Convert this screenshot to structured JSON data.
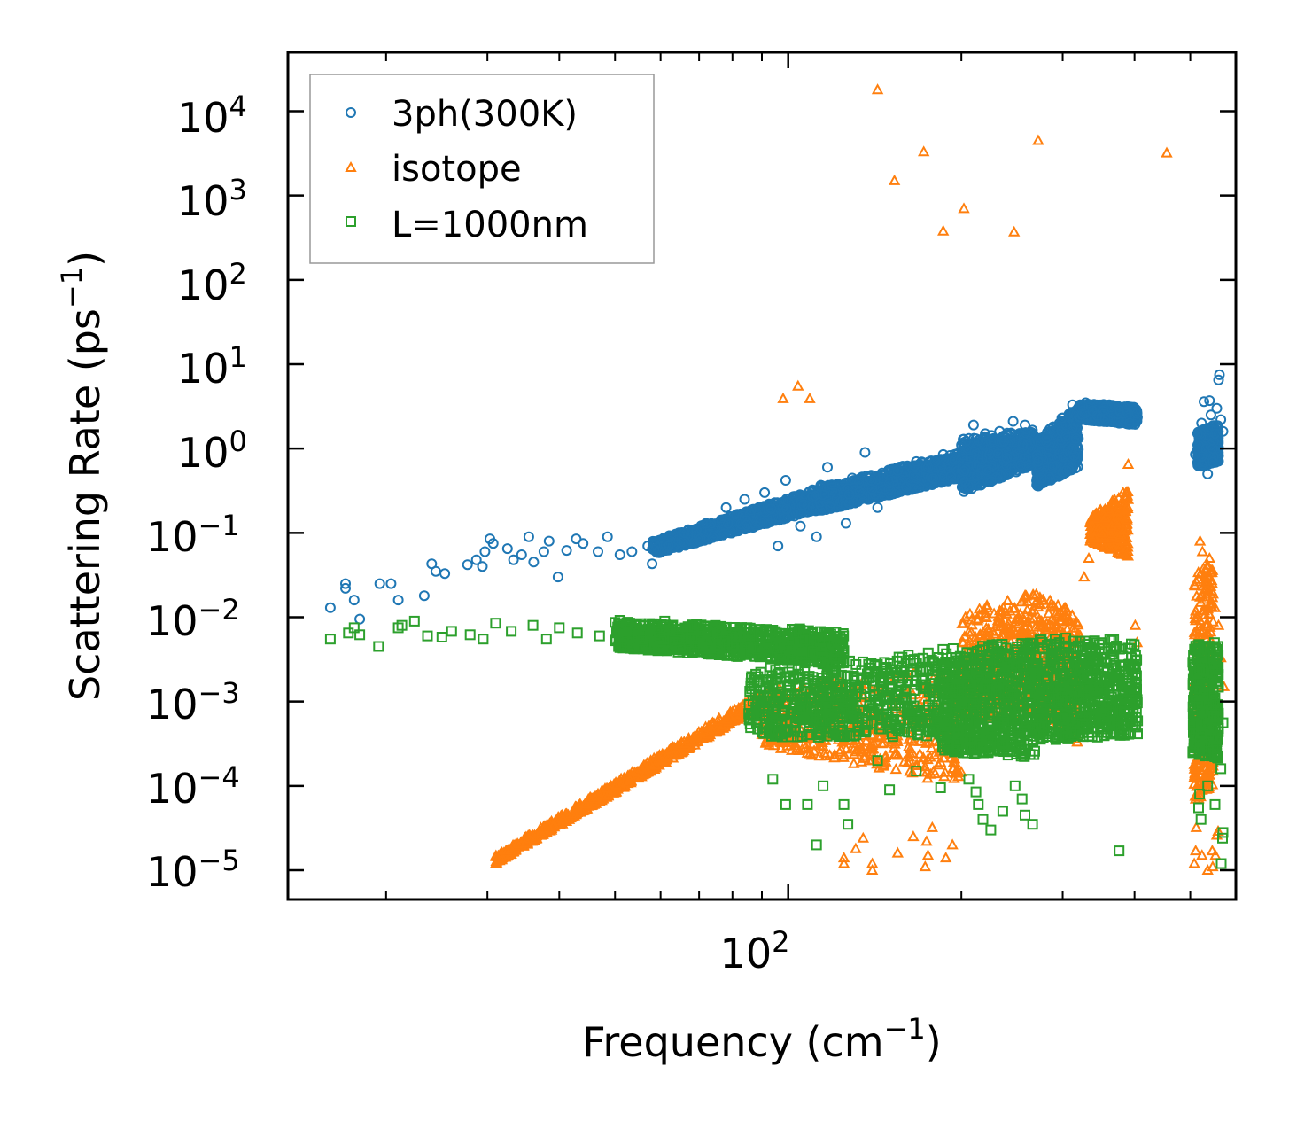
{
  "chart_data": {
    "type": "scatter",
    "xscale": "log",
    "yscale": "log",
    "xlim": [
      13.5,
      600
    ],
    "ylim": [
      4.5e-06,
      50000.0
    ],
    "xlabel": "Frequency (cm",
    "xlabel_sup": "−1",
    "xlabel_end": ")",
    "ylabel": "Scattering Rate (ps",
    "ylabel_sup": "−1",
    "ylabel_end": ")",
    "x_tick_labels": [
      {
        "base": "10",
        "exp": "2",
        "value": 100
      }
    ],
    "y_tick_labels": [
      {
        "base": "10",
        "exp": "−5",
        "value": 1e-05
      },
      {
        "base": "10",
        "exp": "−4",
        "value": 0.0001
      },
      {
        "base": "10",
        "exp": "−3",
        "value": 0.001
      },
      {
        "base": "10",
        "exp": "−2",
        "value": 0.01
      },
      {
        "base": "10",
        "exp": "−1",
        "value": 0.1
      },
      {
        "base": "10",
        "exp": "0",
        "value": 1
      },
      {
        "base": "10",
        "exp": "1",
        "value": 10
      },
      {
        "base": "10",
        "exp": "2",
        "value": 100
      },
      {
        "base": "10",
        "exp": "3",
        "value": 1000
      },
      {
        "base": "10",
        "exp": "4",
        "value": 10000
      }
    ],
    "legend_position": "top-left",
    "series": [
      {
        "name": "3ph(300K)",
        "marker": "circle",
        "color": "#1f77b4",
        "points": [
          [
            16,
            0.013
          ],
          [
            17,
            0.025
          ],
          [
            17,
            0.022
          ],
          [
            17.6,
            0.016
          ],
          [
            18,
            0.0095
          ],
          [
            19.5,
            0.025
          ],
          [
            20.4,
            0.025
          ],
          [
            21,
            0.016
          ],
          [
            23.3,
            0.018
          ],
          [
            24,
            0.043
          ],
          [
            24.4,
            0.035
          ],
          [
            25.3,
            0.033
          ],
          [
            27.7,
            0.042
          ],
          [
            28.7,
            0.048
          ],
          [
            29.4,
            0.04
          ],
          [
            29.7,
            0.06
          ],
          [
            30.3,
            0.085
          ],
          [
            30.7,
            0.075
          ],
          [
            32.5,
            0.065
          ],
          [
            33.3,
            0.048
          ],
          [
            34.4,
            0.055
          ],
          [
            35.4,
            0.09
          ],
          [
            36.1,
            0.045
          ],
          [
            37.6,
            0.06
          ],
          [
            38.4,
            0.08
          ],
          [
            39.8,
            0.03
          ],
          [
            41.2,
            0.062
          ],
          [
            42.8,
            0.085
          ],
          [
            44,
            0.075
          ],
          [
            46.7,
            0.06
          ],
          [
            48.5,
            0.09
          ],
          [
            51,
            0.055
          ],
          [
            53.5,
            0.06
          ],
          [
            57,
            0.07
          ],
          [
            58,
            0.043
          ],
          [
            62,
            0.07
          ],
          [
            66,
            0.1
          ],
          [
            72,
            0.13
          ],
          [
            78,
            0.2
          ],
          [
            84,
            0.25
          ],
          [
            91,
            0.3
          ],
          [
            96,
            0.07
          ],
          [
            99,
            0.42
          ],
          [
            105,
            0.12
          ],
          [
            112,
            0.09
          ],
          [
            117,
            0.6
          ],
          [
            126,
            0.13
          ],
          [
            136,
            0.9
          ],
          [
            143,
            0.2
          ],
          [
            155,
            0.55
          ],
          [
            167,
            0.7
          ],
          [
            175,
            0.6
          ],
          [
            186,
            0.85
          ],
          [
            200,
            1.1
          ],
          [
            210,
            1.9
          ],
          [
            220,
            1.5
          ],
          [
            233,
            1.6
          ],
          [
            246,
            2.1
          ],
          [
            258,
            1.9
          ],
          [
            272,
            0.7
          ],
          [
            285,
            1.7
          ],
          [
            299,
            2.3
          ],
          [
            312,
            3.3
          ],
          [
            325,
            3.2
          ],
          [
            338,
            2.8
          ],
          [
            352,
            2.8
          ],
          [
            364,
            3.1
          ],
          [
            377,
            2.8
          ],
          [
            388,
            2.7
          ],
          [
            392,
            2.0
          ],
          [
            404,
            2.6
          ],
          [
            510,
            0.85
          ],
          [
            515,
            1.5
          ],
          [
            523,
            2.0
          ],
          [
            528,
            3.6
          ],
          [
            532,
            1.0
          ],
          [
            536,
            0.5
          ],
          [
            540,
            3.7
          ],
          [
            543,
            2.5
          ],
          [
            547,
            1.0
          ],
          [
            552,
            1.5
          ],
          [
            556,
            3.0
          ],
          [
            560,
            6.5
          ],
          [
            562,
            7.5
          ],
          [
            565,
            2.2
          ],
          [
            570,
            1.6
          ]
        ],
        "bands": [
          {
            "x": [
              58,
              110
            ],
            "ylo": [
              0.055,
              0.18
            ],
            "yhi": [
              0.08,
              0.32
            ],
            "n": 900
          },
          {
            "x": [
              110,
              200
            ],
            "ylo": [
              0.17,
              0.45
            ],
            "yhi": [
              0.35,
              0.9
            ],
            "n": 900
          },
          {
            "x": [
              200,
              270
            ],
            "ylo": [
              0.3,
              0.65
            ],
            "yhi": [
              1.3,
              1.7
            ],
            "n": 700
          },
          {
            "x": [
              270,
              320
            ],
            "ylo": [
              0.35,
              0.6
            ],
            "yhi": [
              1.2,
              3.6
            ],
            "n": 500
          },
          {
            "x": [
              320,
              405
            ],
            "ylo": [
              2.2,
              1.9
            ],
            "yhi": [
              3.6,
              3.1
            ],
            "n": 500
          },
          {
            "x": [
              515,
              560
            ],
            "ylo": [
              0.6,
              0.7
            ],
            "yhi": [
              1.6,
              2.0
            ],
            "n": 500
          }
        ]
      },
      {
        "name": "isotope",
        "marker": "triangle",
        "color": "#ff7f0e",
        "points": [
          [
            98,
            3.9
          ],
          [
            104,
            5.5
          ],
          [
            109,
            3.9
          ],
          [
            143,
            18000
          ],
          [
            153,
            1500
          ],
          [
            172,
            3300
          ],
          [
            186,
            380
          ],
          [
            202,
            700
          ],
          [
            247,
            370
          ],
          [
            272,
            4500
          ],
          [
            455,
            3200
          ],
          [
            390,
            0.65
          ],
          [
            382,
            0.3
          ],
          [
            372,
            0.18
          ],
          [
            365,
            0.12
          ],
          [
            350,
            0.1
          ],
          [
            340,
            0.09
          ],
          [
            333,
            0.05
          ],
          [
            327,
            0.03
          ],
          [
            322,
            0.006
          ],
          [
            401,
            0.008
          ],
          [
            404,
            0.005
          ],
          [
            507,
            0.0009
          ],
          [
            511,
            0.004
          ],
          [
            514,
            0.01
          ],
          [
            520,
            0.08
          ],
          [
            525,
            0.06
          ],
          [
            531,
            0.03
          ],
          [
            540,
            0.05
          ],
          [
            546,
            0.025
          ],
          [
            552,
            0.013
          ],
          [
            560,
            0.008
          ],
          [
            565,
            0.0033
          ],
          [
            572,
            0.0015
          ],
          [
            125,
            1.2e-05
          ],
          [
            125,
            1.4e-05
          ],
          [
            140,
            1e-05
          ],
          [
            140,
            1.2e-05
          ],
          [
            155,
            1.6e-05
          ],
          [
            173,
            1.1e-05
          ],
          [
            175,
            1.5e-05
          ],
          [
            174,
            2.2e-05
          ],
          [
            188,
            1.4e-05
          ],
          [
            193,
            2e-05
          ],
          [
            178,
            3.2e-05
          ],
          [
            131,
            1.8e-05
          ],
          [
            135,
            2.4e-05
          ],
          [
            165,
            2.5e-05
          ],
          [
            508,
            1.2e-05
          ],
          [
            511,
            1.7e-05
          ],
          [
            512,
            3.2e-05
          ],
          [
            524,
            1.5e-05
          ],
          [
            536,
            1e-05
          ],
          [
            547,
            1.1e-05
          ],
          [
            553,
            1.5e-05
          ],
          [
            556,
            2.6e-05
          ],
          [
            559,
            2.9e-05
          ],
          [
            546,
            1.7e-05
          ]
        ],
        "bands": [
          {
            "x": [
              31,
              90
            ],
            "ylo": [
              1.2e-05,
              0.0009
            ],
            "yhi": [
              1.5e-05,
              0.0013
            ],
            "n": 700
          },
          {
            "x": [
              90,
              200
            ],
            "ylo": [
              0.0003,
              0.0001
            ],
            "yhi": [
              0.0015,
              0.0025
            ],
            "n": 500
          },
          {
            "x": [
              200,
              272
            ],
            "ylo": [
              0.0006,
              0.0007
            ],
            "yhi": [
              0.012,
              0.02
            ],
            "n": 400
          },
          {
            "x": [
              272,
              320
            ],
            "ylo": [
              0.0007,
              0.0003
            ],
            "yhi": [
              0.02,
              0.012
            ],
            "n": 300
          },
          {
            "x": [
              335,
              390
            ],
            "ylo": [
              0.08,
              0.05
            ],
            "yhi": [
              0.15,
              0.35
            ],
            "n": 300
          },
          {
            "x": [
              508,
              548
            ],
            "ylo": [
              6e-05,
              0.0001
            ],
            "yhi": [
              0.04,
              0.05
            ],
            "n": 300
          }
        ]
      },
      {
        "name": "L=1000nm",
        "marker": "square",
        "color": "#2ca02c",
        "points": [
          [
            16,
            0.0055
          ],
          [
            17.2,
            0.0065
          ],
          [
            17.6,
            0.0075
          ],
          [
            18,
            0.0062
          ],
          [
            19.4,
            0.0045
          ],
          [
            21,
            0.0075
          ],
          [
            21.3,
            0.008
          ],
          [
            22.4,
            0.009
          ],
          [
            23.6,
            0.006
          ],
          [
            25,
            0.0058
          ],
          [
            26,
            0.0068
          ],
          [
            28,
            0.0062
          ],
          [
            29.5,
            0.0055
          ],
          [
            31,
            0.0085
          ],
          [
            33,
            0.0068
          ],
          [
            36,
            0.008
          ],
          [
            38,
            0.0055
          ],
          [
            40,
            0.0075
          ],
          [
            43,
            0.0065
          ],
          [
            47,
            0.006
          ],
          [
            51,
            0.0092
          ],
          [
            56,
            0.0055
          ],
          [
            61,
            0.009
          ],
          [
            94,
            0.00012
          ],
          [
            99,
            6e-05
          ],
          [
            108,
            6e-05
          ],
          [
            112,
            2e-05
          ],
          [
            115,
            0.0001
          ],
          [
            125,
            6e-05
          ],
          [
            127,
            3.5e-05
          ],
          [
            143,
            0.0002
          ],
          [
            150,
            9e-05
          ],
          [
            167,
            0.00015
          ],
          [
            184,
            9.5e-05
          ],
          [
            206,
            0.00012
          ],
          [
            212,
            8.5e-05
          ],
          [
            214,
            6e-05
          ],
          [
            218,
            4e-05
          ],
          [
            225,
            3e-05
          ],
          [
            236,
            5e-05
          ],
          [
            248,
            0.0001
          ],
          [
            255,
            7e-05
          ],
          [
            258,
            4.5e-05
          ],
          [
            266,
            3.5e-05
          ],
          [
            376,
            1.7e-05
          ],
          [
            519,
            8e-05
          ],
          [
            517,
            5.5e-05
          ],
          [
            522,
            4e-05
          ],
          [
            536,
            0.0001
          ],
          [
            552,
            6e-05
          ],
          [
            566,
            1.2e-05
          ],
          [
            569,
            2.4e-05
          ],
          [
            570,
            2.8e-05
          ],
          [
            565,
            0.00016
          ],
          [
            570,
            0.00056
          ]
        ],
        "bands": [
          {
            "x": [
              50,
              125
            ],
            "ylo": [
              0.004,
              0.0025
            ],
            "yhi": [
              0.009,
              0.007
            ],
            "n": 900
          },
          {
            "x": [
              85,
              185
            ],
            "ylo": [
              0.0003,
              0.0003
            ],
            "yhi": [
              0.0025,
              0.004
            ],
            "n": 600
          },
          {
            "x": [
              185,
              272
            ],
            "ylo": [
              0.00018,
              0.00015
            ],
            "yhi": [
              0.0045,
              0.0055
            ],
            "n": 700
          },
          {
            "x": [
              272,
              405
            ],
            "ylo": [
              0.00025,
              0.0003
            ],
            "yhi": [
              0.006,
              0.0055
            ],
            "n": 600
          },
          {
            "x": [
              505,
              560
            ],
            "ylo": [
              0.00017,
              0.00015
            ],
            "yhi": [
              0.005,
              0.005
            ],
            "n": 400
          }
        ]
      }
    ]
  }
}
